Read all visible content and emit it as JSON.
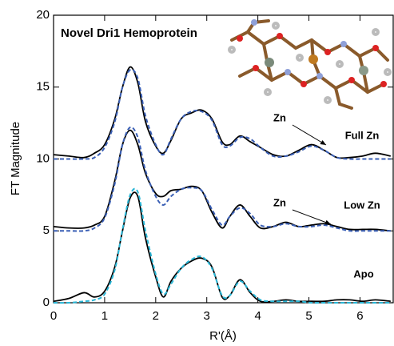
{
  "chart_data": {
    "type": "line",
    "title": "Novel Dri1 Hemoprotein",
    "x_label": "R'(Å)",
    "y_label": "FT Magnitude",
    "xlim": [
      0,
      6.65
    ],
    "ylim": [
      0,
      20
    ],
    "xticks": [
      0,
      1,
      2,
      3,
      4,
      5,
      6
    ],
    "yticks": [
      0,
      5,
      10,
      15,
      20
    ],
    "x": [
      0,
      0.3,
      0.6,
      0.8,
      1.0,
      1.2,
      1.35,
      1.5,
      1.65,
      1.8,
      2.0,
      2.15,
      2.3,
      2.5,
      2.7,
      2.9,
      3.1,
      3.3,
      3.45,
      3.65,
      3.85,
      4.05,
      4.3,
      4.55,
      4.8,
      5.05,
      5.3,
      5.55,
      5.8,
      6.05,
      6.3,
      6.6
    ],
    "series": [
      {
        "name": "Full Zn",
        "color": "#000000",
        "dashed": false,
        "values": [
          10.3,
          10.2,
          10.1,
          10.4,
          11.0,
          12.8,
          15.0,
          16.4,
          15.3,
          12.6,
          10.9,
          10.4,
          11.3,
          12.8,
          13.2,
          13.4,
          12.8,
          11.2,
          11.0,
          11.6,
          11.2,
          10.8,
          10.3,
          10.2,
          10.6,
          11.0,
          10.6,
          10.1,
          10.1,
          10.2,
          10.4,
          10.2
        ]
      },
      {
        "color": "#3a5fb5",
        "dashed": true,
        "values": [
          10.0,
          10.0,
          10.0,
          10.1,
          10.8,
          12.6,
          15.0,
          16.2,
          15.6,
          13.0,
          11.0,
          10.3,
          11.4,
          12.8,
          13.3,
          13.3,
          12.7,
          11.0,
          10.9,
          11.5,
          11.4,
          10.8,
          10.2,
          10.2,
          10.5,
          10.9,
          10.6,
          10.1,
          10.0,
          10.0,
          10.0,
          10.0
        ]
      },
      {
        "name": "Low Zn",
        "color": "#000000",
        "dashed": false,
        "values": [
          5.3,
          5.2,
          5.2,
          5.4,
          6.0,
          8.5,
          11.0,
          12.0,
          11.0,
          9.0,
          7.6,
          7.4,
          7.8,
          7.9,
          8.1,
          7.8,
          6.3,
          5.2,
          6.0,
          6.8,
          6.0,
          5.2,
          5.3,
          5.6,
          5.3,
          5.4,
          5.5,
          5.3,
          5.1,
          5.1,
          5.1,
          5.0
        ]
      },
      {
        "color": "#3a5fb5",
        "dashed": true,
        "values": [
          5.0,
          5.0,
          5.0,
          5.2,
          5.9,
          8.3,
          11.0,
          12.2,
          11.5,
          9.2,
          7.4,
          6.8,
          7.4,
          7.9,
          8.0,
          7.8,
          6.5,
          5.4,
          6.0,
          6.6,
          6.2,
          5.4,
          5.3,
          5.5,
          5.3,
          5.3,
          5.4,
          5.2,
          5.0,
          5.0,
          5.0,
          5.0
        ]
      },
      {
        "name": "Apo",
        "color": "#000000",
        "dashed": false,
        "values": [
          0.1,
          0.3,
          0.7,
          0.4,
          0.8,
          2.5,
          5.0,
          7.3,
          7.4,
          4.5,
          1.8,
          0.4,
          1.5,
          2.4,
          2.9,
          3.1,
          2.5,
          0.4,
          0.5,
          1.6,
          0.7,
          0.1,
          0.1,
          0.2,
          0.1,
          0.1,
          0.1,
          0.2,
          0.2,
          0.1,
          0.2,
          0.1
        ]
      },
      {
        "color": "#29b6d6",
        "dashed": true,
        "values": [
          0.0,
          0.0,
          0.1,
          0.2,
          0.6,
          2.3,
          5.1,
          7.5,
          7.7,
          5.0,
          2.0,
          0.6,
          1.3,
          2.4,
          3.0,
          3.2,
          2.4,
          0.5,
          0.5,
          1.5,
          0.8,
          0.2,
          0.1,
          0.1,
          0.1,
          0.0,
          0.0,
          0.0,
          0.0,
          0.0,
          0.0,
          0.0
        ]
      }
    ],
    "annotations": [
      "Zn",
      "Zn"
    ]
  }
}
